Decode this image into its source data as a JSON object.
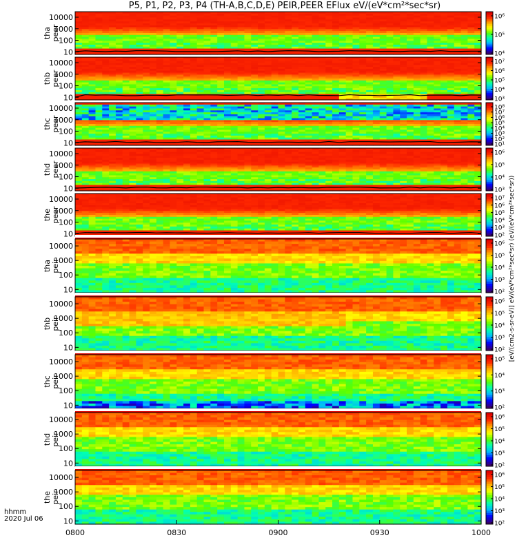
{
  "chart_data": {
    "type": "heatmap",
    "title": "P5, P1, P2, P3, P4 (TH-A,B,C,D,E) PEIR,PEER EFlux eV/(eV*cm²*sec*sr)",
    "colorbar_label": "[eV/(cm2-s-sr-eV)] eV/(eV*cm²*sec*sr) (eV/(eV*cm²*sec*sr))",
    "x_axis": {
      "label_time": "hhmm",
      "label_date": "2020 Jul 06",
      "range": [
        "0800",
        "1000"
      ],
      "ticks": [
        "0800",
        "0830",
        "0900",
        "0930",
        "1000"
      ]
    },
    "y_scale": "log",
    "y_range": [
      6,
      30000
    ],
    "y_ticks": [
      "10",
      "100",
      "1000",
      "10000"
    ],
    "colormap": [
      "#3a006e",
      "#0000ff",
      "#00b4ff",
      "#00ffb4",
      "#5aff00",
      "#ffff00",
      "#ffa500",
      "#ff2800",
      "#dc0000"
    ],
    "panels": [
      {
        "probe": "tha",
        "species": "peer",
        "cbar_ticks": [
          "10⁴",
          "10⁵",
          "10⁶"
        ]
      },
      {
        "probe": "thb",
        "species": "peer",
        "cbar_ticks": [
          "10³",
          "10⁴",
          "10⁵",
          "10⁶",
          "10⁷"
        ]
      },
      {
        "probe": "thc",
        "species": "peer",
        "cbar_ticks": [
          "10¹",
          "10²",
          "10³",
          "10⁴",
          "10⁵",
          "10⁶",
          "10⁷",
          "10⁸"
        ]
      },
      {
        "probe": "thd",
        "species": "peer",
        "cbar_ticks": [
          "10³",
          "10⁴",
          "10⁵",
          "10⁶"
        ]
      },
      {
        "probe": "the",
        "species": "peer",
        "cbar_ticks": [
          "10²",
          "10³",
          "10⁴",
          "10⁵",
          "10⁶",
          "10⁷"
        ]
      },
      {
        "probe": "tha",
        "species": "peir",
        "cbar_ticks": [
          "10²",
          "10³",
          "10⁴",
          "10⁵",
          "10⁶"
        ]
      },
      {
        "probe": "thb",
        "species": "peir",
        "cbar_ticks": [
          "10²",
          "10³",
          "10⁴",
          "10⁵",
          "10⁶"
        ]
      },
      {
        "probe": "thc",
        "species": "peir",
        "cbar_ticks": [
          "10²",
          "10³",
          "10⁴",
          "10⁵"
        ]
      },
      {
        "probe": "thd",
        "species": "peir",
        "cbar_ticks": [
          "10²",
          "10³",
          "10⁴",
          "10⁵",
          "10⁶"
        ]
      },
      {
        "probe": "the",
        "species": "peir",
        "cbar_ticks": [
          "10²",
          "10³",
          "10⁴",
          "10⁵",
          "10⁶"
        ]
      }
    ]
  }
}
